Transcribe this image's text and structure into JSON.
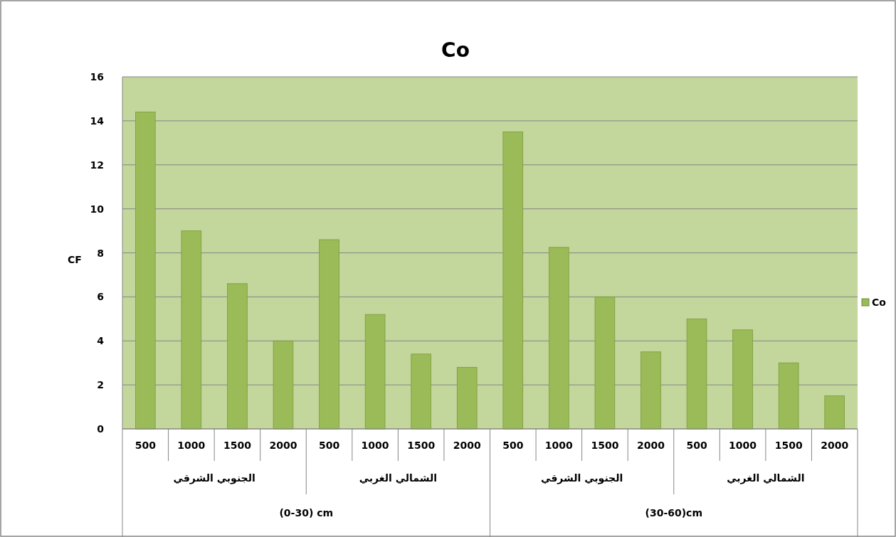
{
  "chart_data": {
    "type": "bar",
    "title": "Co",
    "ylabel": "CF",
    "categories": [
      "500",
      "1000",
      "1500",
      "2000",
      "500",
      "1000",
      "1500",
      "2000",
      "500",
      "1000",
      "1500",
      "2000",
      "500",
      "1000",
      "1500",
      "2000"
    ],
    "series": [
      {
        "name": "Co",
        "color": "#9bbb59",
        "values": [
          14.4,
          9.0,
          6.6,
          4.0,
          8.6,
          5.2,
          3.4,
          2.8,
          13.5,
          8.25,
          6.0,
          3.5,
          5.0,
          4.5,
          3.0,
          1.5
        ]
      }
    ],
    "annotations": [
      "الجنوبي الشرقي",
      "الشمالي الغربي",
      "الجنوبي الشرقي",
      "الشمالي الغربي",
      "(0-30) cm",
      "(30-60)cm"
    ],
    "ylim": [
      0,
      16
    ],
    "yticks": [
      0,
      2,
      4,
      6,
      8,
      10,
      12,
      14,
      16
    ],
    "grid": "y",
    "legend": "right"
  }
}
